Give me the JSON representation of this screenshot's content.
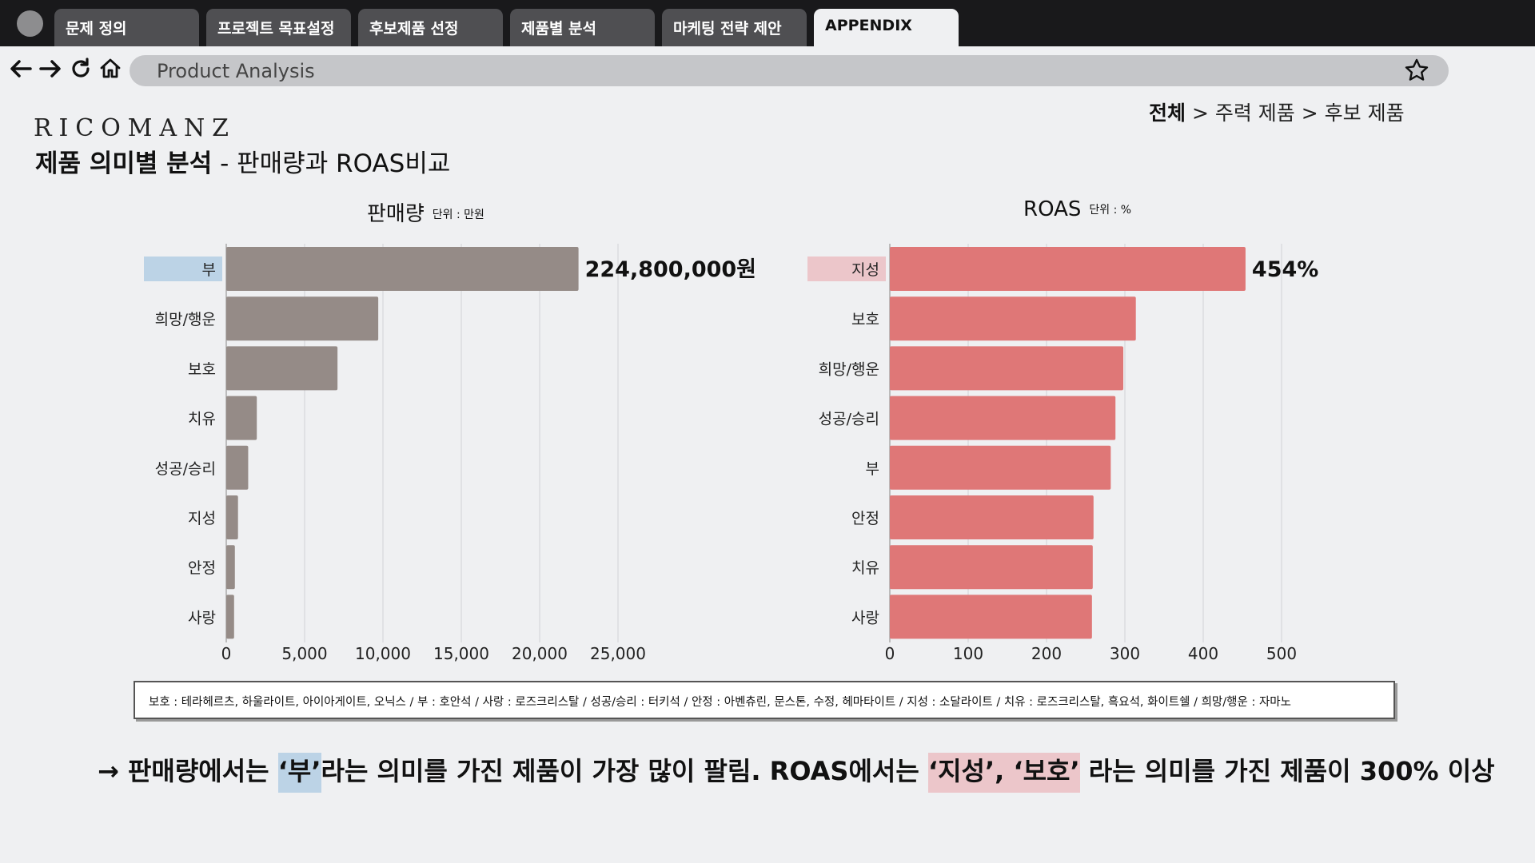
{
  "tabs": [
    "문제 정의",
    "프로젝트 목표설정",
    "후보제품 선정",
    "제품별 분석",
    "마케팅 전략 제안",
    "APPENDIX"
  ],
  "active_tab": 5,
  "address_bar": {
    "text": "Product Analysis"
  },
  "logo": {
    "text": "RICOMANZ"
  },
  "breadcrumb": {
    "current": "전체",
    "rest": " > 주력 제품 > 후보 제품"
  },
  "page_title": {
    "bold": "제품 의미별 분석",
    "rest": " - 판매량과 ROAS비교"
  },
  "colors": {
    "sales_bar": "#958b87",
    "roas_bar": "#df7777",
    "highlight_blue": "#bcd3e6",
    "highlight_pink": "#ecc6ca",
    "grid": "#d6d7da"
  },
  "chart_data": [
    {
      "type": "bar",
      "orientation": "horizontal",
      "title": "판매량",
      "unit": "단위 : 만원",
      "categories": [
        "부",
        "희망/행운",
        "보호",
        "치유",
        "성공/승리",
        "지성",
        "안정",
        "사랑"
      ],
      "values": [
        22480,
        9700,
        7100,
        1950,
        1400,
        750,
        550,
        500
      ],
      "xlim": [
        0,
        25000
      ],
      "xticks": [
        "0",
        "5,000",
        "10,000",
        "15,000",
        "20,000",
        "25,000"
      ],
      "tick_values": [
        0,
        5000,
        10000,
        15000,
        20000,
        25000
      ],
      "data_label": {
        "index": 0,
        "text": "224,800,000원"
      },
      "highlight_index": 0,
      "grid": true
    },
    {
      "type": "bar",
      "orientation": "horizontal",
      "title": "ROAS",
      "unit": "단위 : %",
      "categories": [
        "지성",
        "보호",
        "희망/행운",
        "성공/승리",
        "부",
        "안정",
        "치유",
        "사랑"
      ],
      "values": [
        454,
        314,
        298,
        288,
        282,
        260,
        259,
        258
      ],
      "xlim": [
        0,
        500
      ],
      "xticks": [
        "0",
        "100",
        "200",
        "300",
        "400",
        "500"
      ],
      "tick_values": [
        0,
        100,
        200,
        300,
        400,
        500
      ],
      "data_label": {
        "index": 0,
        "text": "454%"
      },
      "highlight_index": 0,
      "grid": true
    }
  ],
  "legend_note": "보호 : 테라헤르츠, 하울라이트, 아이아게이트, 오닉스 / 부 : 호안석 / 사랑 : 로즈크리스탈 / 성공/승리 : 터키석 / 안정 : 아벤츄린, 문스톤, 수정, 헤마타이트 / 지성 : 소달라이트 / 치유 : 로즈크리스탈, 흑요석, 화이트쉘 / 희망/행운 : 자마노",
  "conclusion": {
    "arrow": "→ ",
    "p1": "판매량에서는 ",
    "hl1": "‘부’",
    "p2": "라는 의미를 가진 제품이 가장 많이 팔림. ROAS에서는 ",
    "hl2": "‘지성’, ‘보호’",
    "p3": " 라는 의미를 가진 제품이 300% 이상"
  }
}
